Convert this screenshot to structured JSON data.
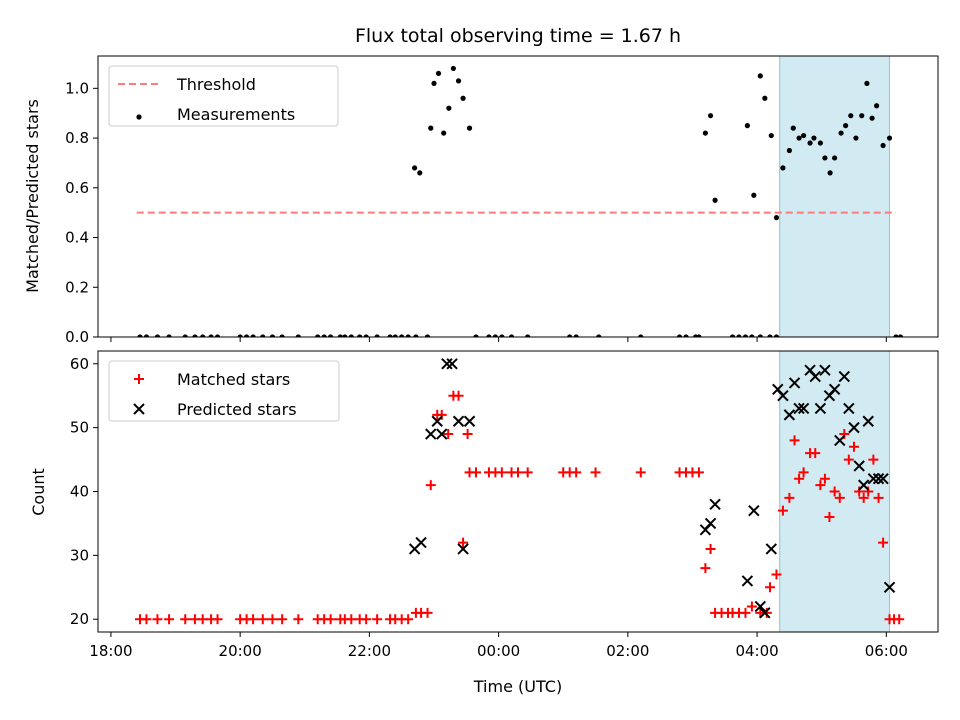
{
  "chart_data": {
    "title": "Flux total observing time = 1.67 h",
    "xlabel": "Time (UTC)",
    "x_tick_labels": [
      "18:00",
      "20:00",
      "22:00",
      "00:00",
      "02:00",
      "04:00",
      "06:00"
    ],
    "x_tick_hours": [
      18,
      20,
      22,
      24,
      26,
      28,
      30
    ],
    "xlim_hours": [
      17.8,
      30.8
    ],
    "highlight_hours": [
      28.35,
      30.05
    ],
    "colors": {
      "threshold": "#ff7b7b",
      "measurements": "#000000",
      "matched": "#ff0000",
      "predicted": "#000000",
      "highlight": "#add8e6"
    },
    "panels": [
      {
        "type": "scatter",
        "ylabel": "Matched/Predicted stars",
        "ylim": [
          0,
          1.13
        ],
        "y_ticks": [
          "0.0",
          "0.2",
          "0.4",
          "0.6",
          "0.8",
          "1.0"
        ],
        "y_tick_values": [
          0,
          0.2,
          0.4,
          0.6,
          0.8,
          1.0
        ],
        "legend_position": "top-left",
        "threshold": {
          "name": "Threshold",
          "y": 0.5,
          "x_range_hours": [
            18.4,
            30.15
          ]
        },
        "series": [
          {
            "name": "Measurements",
            "marker": "dot",
            "points": [
              [
                18.45,
                0
              ],
              [
                18.55,
                0
              ],
              [
                18.72,
                0
              ],
              [
                18.9,
                0
              ],
              [
                19.15,
                0
              ],
              [
                19.3,
                0
              ],
              [
                19.42,
                0
              ],
              [
                19.55,
                0
              ],
              [
                19.65,
                0
              ],
              [
                20.0,
                0
              ],
              [
                20.1,
                0
              ],
              [
                20.2,
                0
              ],
              [
                20.35,
                0
              ],
              [
                20.5,
                0
              ],
              [
                20.65,
                0
              ],
              [
                20.9,
                0
              ],
              [
                21.2,
                0
              ],
              [
                21.3,
                0
              ],
              [
                21.4,
                0
              ],
              [
                21.55,
                0
              ],
              [
                21.62,
                0
              ],
              [
                21.72,
                0
              ],
              [
                21.85,
                0
              ],
              [
                21.95,
                0
              ],
              [
                22.12,
                0
              ],
              [
                22.32,
                0
              ],
              [
                22.4,
                0
              ],
              [
                22.5,
                0
              ],
              [
                22.6,
                0
              ],
              [
                22.72,
                0
              ],
              [
                22.9,
                0
              ],
              [
                22.7,
                0.68
              ],
              [
                22.78,
                0.66
              ],
              [
                22.95,
                0.84
              ],
              [
                23.0,
                1.02
              ],
              [
                23.07,
                1.06
              ],
              [
                23.15,
                0.82
              ],
              [
                23.23,
                0.92
              ],
              [
                23.3,
                1.08
              ],
              [
                23.38,
                1.03
              ],
              [
                23.45,
                0.96
              ],
              [
                23.55,
                0.84
              ],
              [
                23.65,
                0
              ],
              [
                23.85,
                0
              ],
              [
                23.95,
                0
              ],
              [
                24.05,
                0
              ],
              [
                24.2,
                0
              ],
              [
                24.45,
                0
              ],
              [
                25.1,
                0
              ],
              [
                25.2,
                0
              ],
              [
                25.55,
                0
              ],
              [
                26.2,
                0
              ],
              [
                26.8,
                0
              ],
              [
                26.9,
                0
              ],
              [
                27.05,
                0
              ],
              [
                27.1,
                0
              ],
              [
                27.2,
                0.82
              ],
              [
                27.28,
                0.89
              ],
              [
                27.35,
                0.55
              ],
              [
                27.62,
                0
              ],
              [
                27.72,
                0
              ],
              [
                27.82,
                0
              ],
              [
                27.92,
                0
              ],
              [
                28.05,
                0
              ],
              [
                28.2,
                0
              ],
              [
                28.3,
                0
              ],
              [
                27.85,
                0.85
              ],
              [
                27.95,
                0.57
              ],
              [
                28.05,
                1.05
              ],
              [
                28.12,
                0.96
              ],
              [
                28.22,
                0.81
              ],
              [
                28.3,
                0.48
              ],
              [
                28.4,
                0.68
              ],
              [
                28.5,
                0.75
              ],
              [
                28.56,
                0.84
              ],
              [
                28.65,
                0.8
              ],
              [
                28.72,
                0.81
              ],
              [
                28.82,
                0.78
              ],
              [
                28.88,
                0.8
              ],
              [
                28.98,
                0.78
              ],
              [
                29.05,
                0.72
              ],
              [
                29.13,
                0.66
              ],
              [
                29.2,
                0.72
              ],
              [
                29.3,
                0.82
              ],
              [
                29.37,
                0.85
              ],
              [
                29.45,
                0.89
              ],
              [
                29.53,
                0.8
              ],
              [
                29.62,
                0.89
              ],
              [
                29.7,
                1.02
              ],
              [
                29.78,
                0.88
              ],
              [
                29.85,
                0.93
              ],
              [
                29.95,
                0.77
              ],
              [
                30.05,
                0.8
              ],
              [
                30.15,
                0
              ],
              [
                30.22,
                0
              ]
            ]
          }
        ]
      },
      {
        "type": "scatter",
        "ylabel": "Count",
        "ylim": [
          18,
          62
        ],
        "y_ticks": [
          "20",
          "30",
          "40",
          "50",
          "60"
        ],
        "y_tick_values": [
          20,
          30,
          40,
          50,
          60
        ],
        "legend_position": "top-left",
        "series": [
          {
            "name": "Matched stars",
            "marker": "plus",
            "points": [
              [
                18.45,
                20
              ],
              [
                18.55,
                20
              ],
              [
                18.72,
                20
              ],
              [
                18.9,
                20
              ],
              [
                19.15,
                20
              ],
              [
                19.3,
                20
              ],
              [
                19.42,
                20
              ],
              [
                19.55,
                20
              ],
              [
                19.65,
                20
              ],
              [
                20.0,
                20
              ],
              [
                20.1,
                20
              ],
              [
                20.2,
                20
              ],
              [
                20.35,
                20
              ],
              [
                20.5,
                20
              ],
              [
                20.65,
                20
              ],
              [
                20.9,
                20
              ],
              [
                21.2,
                20
              ],
              [
                21.3,
                20
              ],
              [
                21.4,
                20
              ],
              [
                21.55,
                20
              ],
              [
                21.62,
                20
              ],
              [
                21.72,
                20
              ],
              [
                21.85,
                20
              ],
              [
                21.95,
                20
              ],
              [
                22.12,
                20
              ],
              [
                22.32,
                20
              ],
              [
                22.4,
                20
              ],
              [
                22.5,
                20
              ],
              [
                22.6,
                20
              ],
              [
                22.72,
                21
              ],
              [
                22.8,
                21
              ],
              [
                22.9,
                21
              ],
              [
                22.95,
                41
              ],
              [
                23.05,
                52
              ],
              [
                23.12,
                52
              ],
              [
                23.22,
                49
              ],
              [
                23.3,
                55
              ],
              [
                23.38,
                55
              ],
              [
                23.45,
                32
              ],
              [
                23.52,
                49
              ],
              [
                23.55,
                43
              ],
              [
                23.65,
                43
              ],
              [
                23.85,
                43
              ],
              [
                23.95,
                43
              ],
              [
                24.05,
                43
              ],
              [
                24.2,
                43
              ],
              [
                24.3,
                43
              ],
              [
                24.45,
                43
              ],
              [
                25.0,
                43
              ],
              [
                25.1,
                43
              ],
              [
                25.2,
                43
              ],
              [
                25.5,
                43
              ],
              [
                26.2,
                43
              ],
              [
                26.8,
                43
              ],
              [
                26.9,
                43
              ],
              [
                27.0,
                43
              ],
              [
                27.1,
                43
              ],
              [
                27.2,
                28
              ],
              [
                27.28,
                31
              ],
              [
                27.35,
                21
              ],
              [
                27.45,
                21
              ],
              [
                27.55,
                21
              ],
              [
                27.62,
                21
              ],
              [
                27.72,
                21
              ],
              [
                27.82,
                21
              ],
              [
                27.92,
                22
              ],
              [
                28.05,
                21
              ],
              [
                28.15,
                21
              ],
              [
                28.2,
                25
              ],
              [
                28.3,
                27
              ],
              [
                28.4,
                37
              ],
              [
                28.5,
                39
              ],
              [
                28.58,
                48
              ],
              [
                28.65,
                42
              ],
              [
                28.72,
                43
              ],
              [
                28.82,
                46
              ],
              [
                28.9,
                46
              ],
              [
                28.98,
                41
              ],
              [
                29.05,
                42
              ],
              [
                29.12,
                36
              ],
              [
                29.2,
                40
              ],
              [
                29.28,
                39
              ],
              [
                29.35,
                49
              ],
              [
                29.42,
                45
              ],
              [
                29.5,
                47
              ],
              [
                29.58,
                40
              ],
              [
                29.65,
                39
              ],
              [
                29.72,
                40
              ],
              [
                29.8,
                45
              ],
              [
                29.88,
                39
              ],
              [
                29.95,
                32
              ],
              [
                30.05,
                20
              ],
              [
                30.12,
                20
              ],
              [
                30.2,
                20
              ]
            ]
          },
          {
            "name": "Predicted stars",
            "marker": "x",
            "points": [
              [
                22.7,
                31
              ],
              [
                22.8,
                32
              ],
              [
                22.95,
                49
              ],
              [
                23.05,
                51
              ],
              [
                23.12,
                49
              ],
              [
                23.2,
                60
              ],
              [
                23.28,
                60
              ],
              [
                23.38,
                51
              ],
              [
                23.45,
                31
              ],
              [
                23.55,
                51
              ],
              [
                27.2,
                34
              ],
              [
                27.28,
                35
              ],
              [
                27.35,
                38
              ],
              [
                27.85,
                26
              ],
              [
                27.95,
                37
              ],
              [
                28.05,
                22
              ],
              [
                28.12,
                21
              ],
              [
                28.22,
                31
              ],
              [
                28.32,
                56
              ],
              [
                28.4,
                55
              ],
              [
                28.5,
                52
              ],
              [
                28.58,
                57
              ],
              [
                28.65,
                53
              ],
              [
                28.72,
                53
              ],
              [
                28.82,
                59
              ],
              [
                28.9,
                58
              ],
              [
                28.98,
                53
              ],
              [
                29.05,
                59
              ],
              [
                29.12,
                55
              ],
              [
                29.2,
                56
              ],
              [
                29.28,
                48
              ],
              [
                29.35,
                58
              ],
              [
                29.42,
                53
              ],
              [
                29.5,
                50
              ],
              [
                29.58,
                44
              ],
              [
                29.65,
                41
              ],
              [
                29.72,
                51
              ],
              [
                29.8,
                42
              ],
              [
                29.88,
                42
              ],
              [
                29.95,
                42
              ],
              [
                30.05,
                25
              ]
            ]
          }
        ]
      }
    ]
  }
}
